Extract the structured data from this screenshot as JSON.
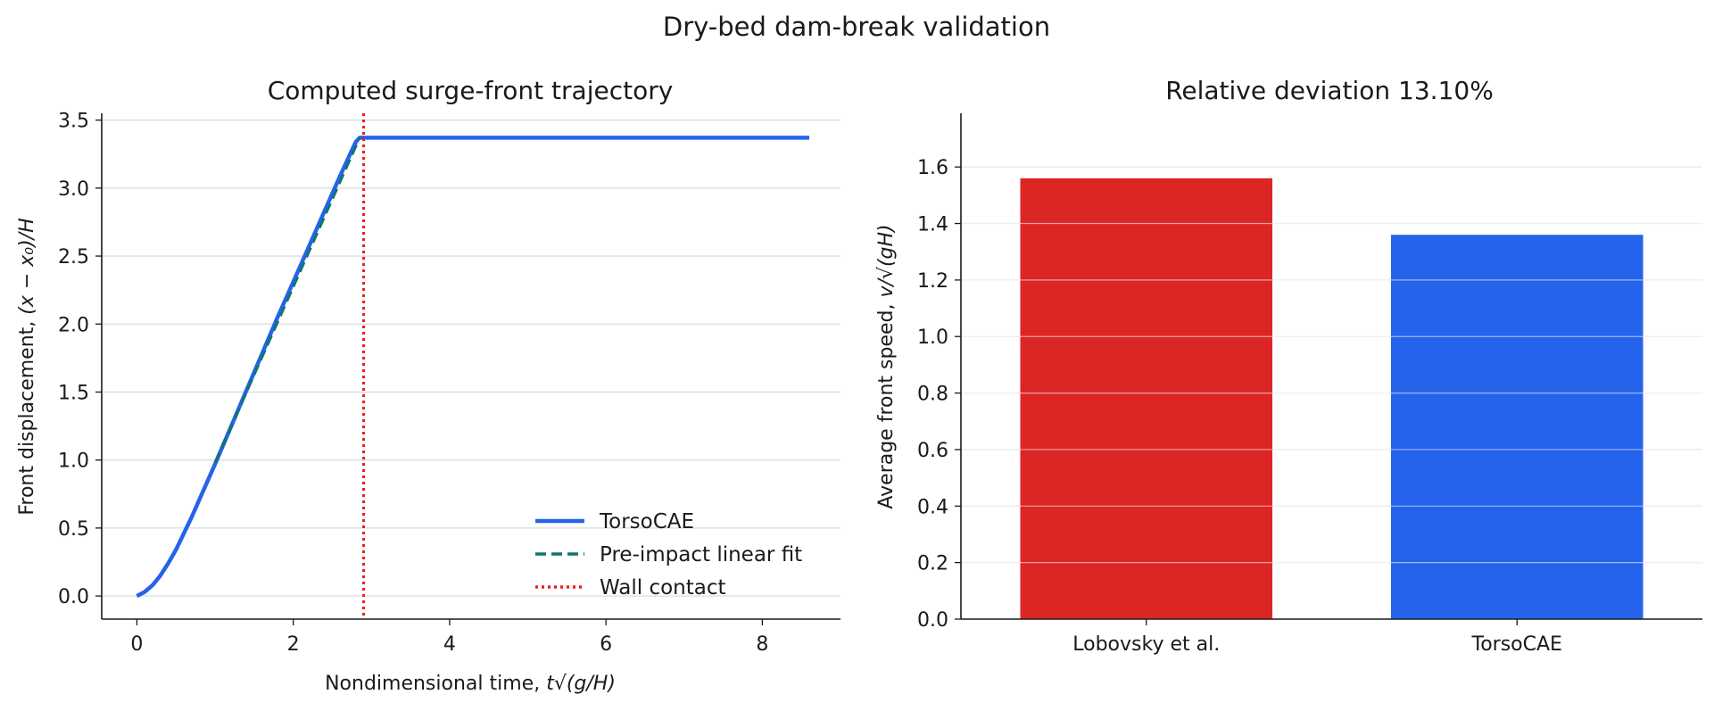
{
  "suptitle": "Dry-bed dam-break validation",
  "colors": {
    "torsocae": "#2563eb",
    "fit": "#0f766e",
    "wall": "#ef1c1c",
    "reference": "#dc2626",
    "grid": "#d7dde5",
    "axis": "#1a1a1a"
  },
  "chart_data": [
    {
      "type": "line",
      "title": "Computed surge-front trajectory",
      "xlabel_prefix": "Nondimensional time, ",
      "xlabel_math": "t√(g/H)",
      "ylabel_prefix": "Front displacement, ",
      "ylabel_math": "(x − x₀)/H",
      "xlim": [
        -0.45,
        9.0
      ],
      "ylim": [
        -0.17,
        3.55
      ],
      "xticks": [
        0,
        2,
        4,
        6,
        8
      ],
      "xtick_labels": [
        "0",
        "2",
        "4",
        "6",
        "8"
      ],
      "yticks": [
        0.0,
        0.5,
        1.0,
        1.5,
        2.0,
        2.5,
        3.0,
        3.5
      ],
      "ytick_labels": [
        "0.0",
        "0.5",
        "1.0",
        "1.5",
        "2.0",
        "2.5",
        "3.0",
        "3.5"
      ],
      "grid": "y",
      "legend_position": "lower-right",
      "series": [
        {
          "name": "TorsoCAE",
          "style": "solid",
          "x": [
            0,
            0.1,
            0.2,
            0.3,
            0.4,
            0.5,
            0.6,
            0.7,
            0.8,
            0.9,
            1.0,
            1.2,
            1.4,
            1.6,
            1.8,
            2.0,
            2.2,
            2.4,
            2.6,
            2.8,
            2.85,
            2.9,
            3.5,
            4,
            5,
            6,
            7,
            8,
            8.6
          ],
          "y": [
            0,
            0.03,
            0.08,
            0.15,
            0.24,
            0.34,
            0.46,
            0.58,
            0.71,
            0.84,
            0.97,
            1.24,
            1.51,
            1.78,
            2.05,
            2.31,
            2.57,
            2.83,
            3.09,
            3.34,
            3.37,
            3.37,
            3.37,
            3.37,
            3.37,
            3.37,
            3.37,
            3.37,
            3.37
          ]
        },
        {
          "name": "Pre-impact linear fit",
          "style": "dashed",
          "x": [
            1.0,
            2.85
          ],
          "y": [
            0.98,
            3.37
          ]
        },
        {
          "name": "Wall contact",
          "style": "dotted",
          "vline_x": 2.9
        }
      ]
    },
    {
      "type": "bar",
      "title": "Relative deviation 13.10%",
      "ylabel_prefix": "Average front speed, ",
      "ylabel_math": "v/√(gH)",
      "categories": [
        "Lobovsky et al.",
        "TorsoCAE"
      ],
      "values": [
        1.56,
        1.36
      ],
      "ylim": [
        0.0,
        1.79
      ],
      "yticks": [
        0.0,
        0.2,
        0.4,
        0.6,
        0.8,
        1.0,
        1.2,
        1.4,
        1.6
      ],
      "ytick_labels": [
        "0.0",
        "0.2",
        "0.4",
        "0.6",
        "0.8",
        "1.0",
        "1.2",
        "1.4",
        "1.6"
      ],
      "grid": "y"
    }
  ]
}
